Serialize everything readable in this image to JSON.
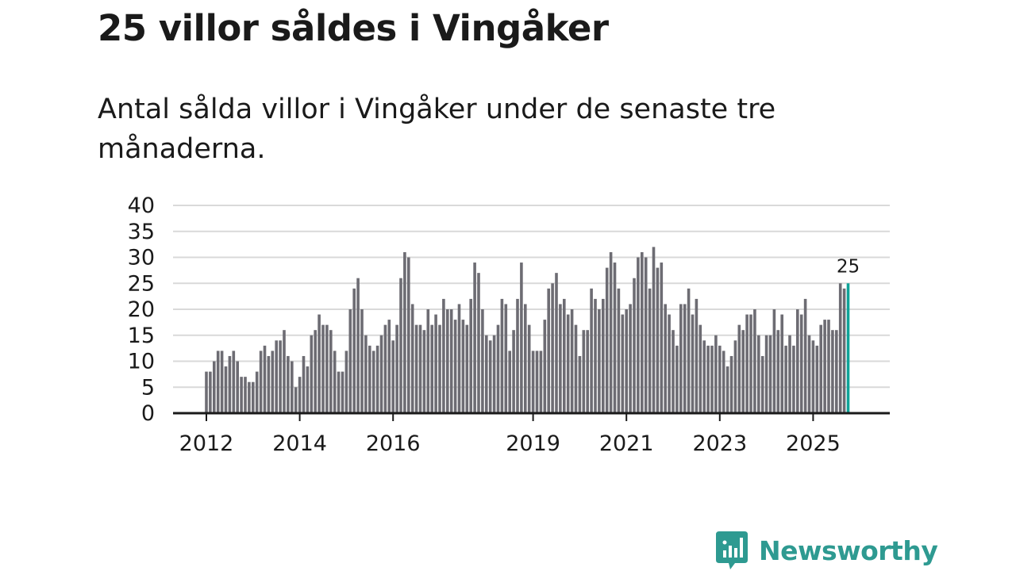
{
  "title": "25 villor såldes i Vingåker",
  "subtitle": "Antal sålda villor i Vingåker under de senaste tre månaderna.",
  "brand": {
    "name": "Newsworthy",
    "icon": "newsworthy-logo-icon",
    "color": "#2e9a91"
  },
  "colors": {
    "bar": "#6d6c73",
    "highlight": "#0fa398",
    "grid": "#d9d9d9",
    "axis": "#1a1a1a",
    "text": "#1a1a1a"
  },
  "chart_data": {
    "type": "bar",
    "title": "Antal sålda villor i Vingåker under de senaste tre månaderna.",
    "xlabel": "",
    "ylabel": "",
    "ylim": [
      0,
      40
    ],
    "yticks": [
      0,
      5,
      10,
      15,
      20,
      25,
      30,
      35,
      40
    ],
    "grid": true,
    "start": {
      "year": 2012,
      "month": 1
    },
    "xticks": [
      {
        "label": "2012",
        "index": 0
      },
      {
        "label": "2014",
        "index": 24
      },
      {
        "label": "2016",
        "index": 48
      },
      {
        "label": "2019",
        "index": 84
      },
      {
        "label": "2021",
        "index": 108
      },
      {
        "label": "2023",
        "index": 132
      },
      {
        "label": "2025",
        "index": 156
      }
    ],
    "highlight_label": "25",
    "values": [
      8,
      8,
      10,
      12,
      12,
      9,
      11,
      12,
      10,
      7,
      7,
      6,
      6,
      8,
      12,
      13,
      11,
      12,
      14,
      14,
      16,
      11,
      10,
      5,
      7,
      11,
      9,
      15,
      16,
      19,
      17,
      17,
      16,
      12,
      8,
      8,
      12,
      20,
      24,
      26,
      20,
      15,
      13,
      12,
      13,
      15,
      17,
      18,
      14,
      17,
      26,
      31,
      30,
      21,
      17,
      17,
      16,
      20,
      17,
      19,
      17,
      22,
      20,
      20,
      18,
      21,
      18,
      17,
      22,
      29,
      27,
      20,
      15,
      14,
      15,
      17,
      22,
      21,
      12,
      16,
      22,
      29,
      21,
      17,
      12,
      12,
      12,
      18,
      24,
      25,
      27,
      21,
      22,
      19,
      20,
      17,
      11,
      16,
      16,
      24,
      22,
      20,
      22,
      28,
      31,
      29,
      24,
      19,
      20,
      21,
      26,
      30,
      31,
      30,
      24,
      32,
      28,
      29,
      21,
      19,
      16,
      13,
      21,
      21,
      24,
      19,
      22,
      17,
      14,
      13,
      13,
      15,
      13,
      12,
      9,
      11,
      14,
      17,
      16,
      19,
      19,
      20,
      15,
      11,
      15,
      15,
      20,
      16,
      19,
      13,
      15,
      13,
      20,
      19,
      22,
      15,
      14,
      13,
      17,
      18,
      18,
      16,
      16,
      25,
      24,
      25
    ]
  }
}
